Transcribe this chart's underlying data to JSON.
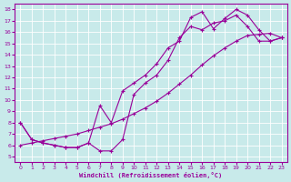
{
  "xlabel": "Windchill (Refroidissement éolien,°C)",
  "bg_color": "#c8eaea",
  "line_color": "#990099",
  "grid_color": "#ffffff",
  "xlim": [
    -0.5,
    23.5
  ],
  "ylim": [
    4.5,
    18.5
  ],
  "xticks": [
    0,
    1,
    2,
    3,
    4,
    5,
    6,
    7,
    8,
    9,
    10,
    11,
    12,
    13,
    14,
    15,
    16,
    17,
    18,
    19,
    20,
    21,
    22,
    23
  ],
  "yticks": [
    5,
    6,
    7,
    8,
    9,
    10,
    11,
    12,
    13,
    14,
    15,
    16,
    17,
    18
  ],
  "line_straight_x": [
    0,
    1,
    2,
    3,
    4,
    5,
    6,
    7,
    8,
    9,
    10,
    11,
    12,
    13,
    14,
    15,
    16,
    17,
    18,
    19,
    20,
    21,
    22,
    23
  ],
  "line_straight_y": [
    6.0,
    6.2,
    6.4,
    6.6,
    6.8,
    7.0,
    7.3,
    7.6,
    7.9,
    8.3,
    8.8,
    9.3,
    9.9,
    10.6,
    11.4,
    12.2,
    13.1,
    13.9,
    14.6,
    15.2,
    15.7,
    15.8,
    15.9,
    15.5
  ],
  "line_upper_x": [
    0,
    1,
    2,
    3,
    4,
    5,
    6,
    7,
    8,
    9,
    10,
    11,
    12,
    13,
    14,
    15,
    16,
    17,
    18,
    19,
    20,
    21,
    22,
    23
  ],
  "line_upper_y": [
    8.0,
    6.5,
    6.2,
    6.0,
    5.8,
    5.8,
    6.2,
    9.5,
    8.0,
    10.8,
    11.5,
    12.2,
    13.2,
    14.6,
    15.2,
    17.3,
    17.8,
    16.3,
    17.2,
    18.0,
    17.5,
    16.2,
    15.2,
    15.5
  ],
  "line_lower_x": [
    0,
    1,
    2,
    3,
    4,
    5,
    6,
    7,
    8,
    9,
    10,
    11,
    12,
    13,
    14,
    15,
    16,
    17,
    18,
    19,
    20,
    21,
    22,
    23
  ],
  "line_lower_y": [
    8.0,
    6.5,
    6.2,
    6.0,
    5.8,
    5.8,
    6.2,
    5.5,
    5.5,
    6.5,
    10.5,
    11.5,
    12.2,
    13.5,
    15.5,
    16.5,
    16.2,
    16.8,
    17.0,
    17.5,
    16.5,
    15.2,
    15.2,
    15.5
  ]
}
